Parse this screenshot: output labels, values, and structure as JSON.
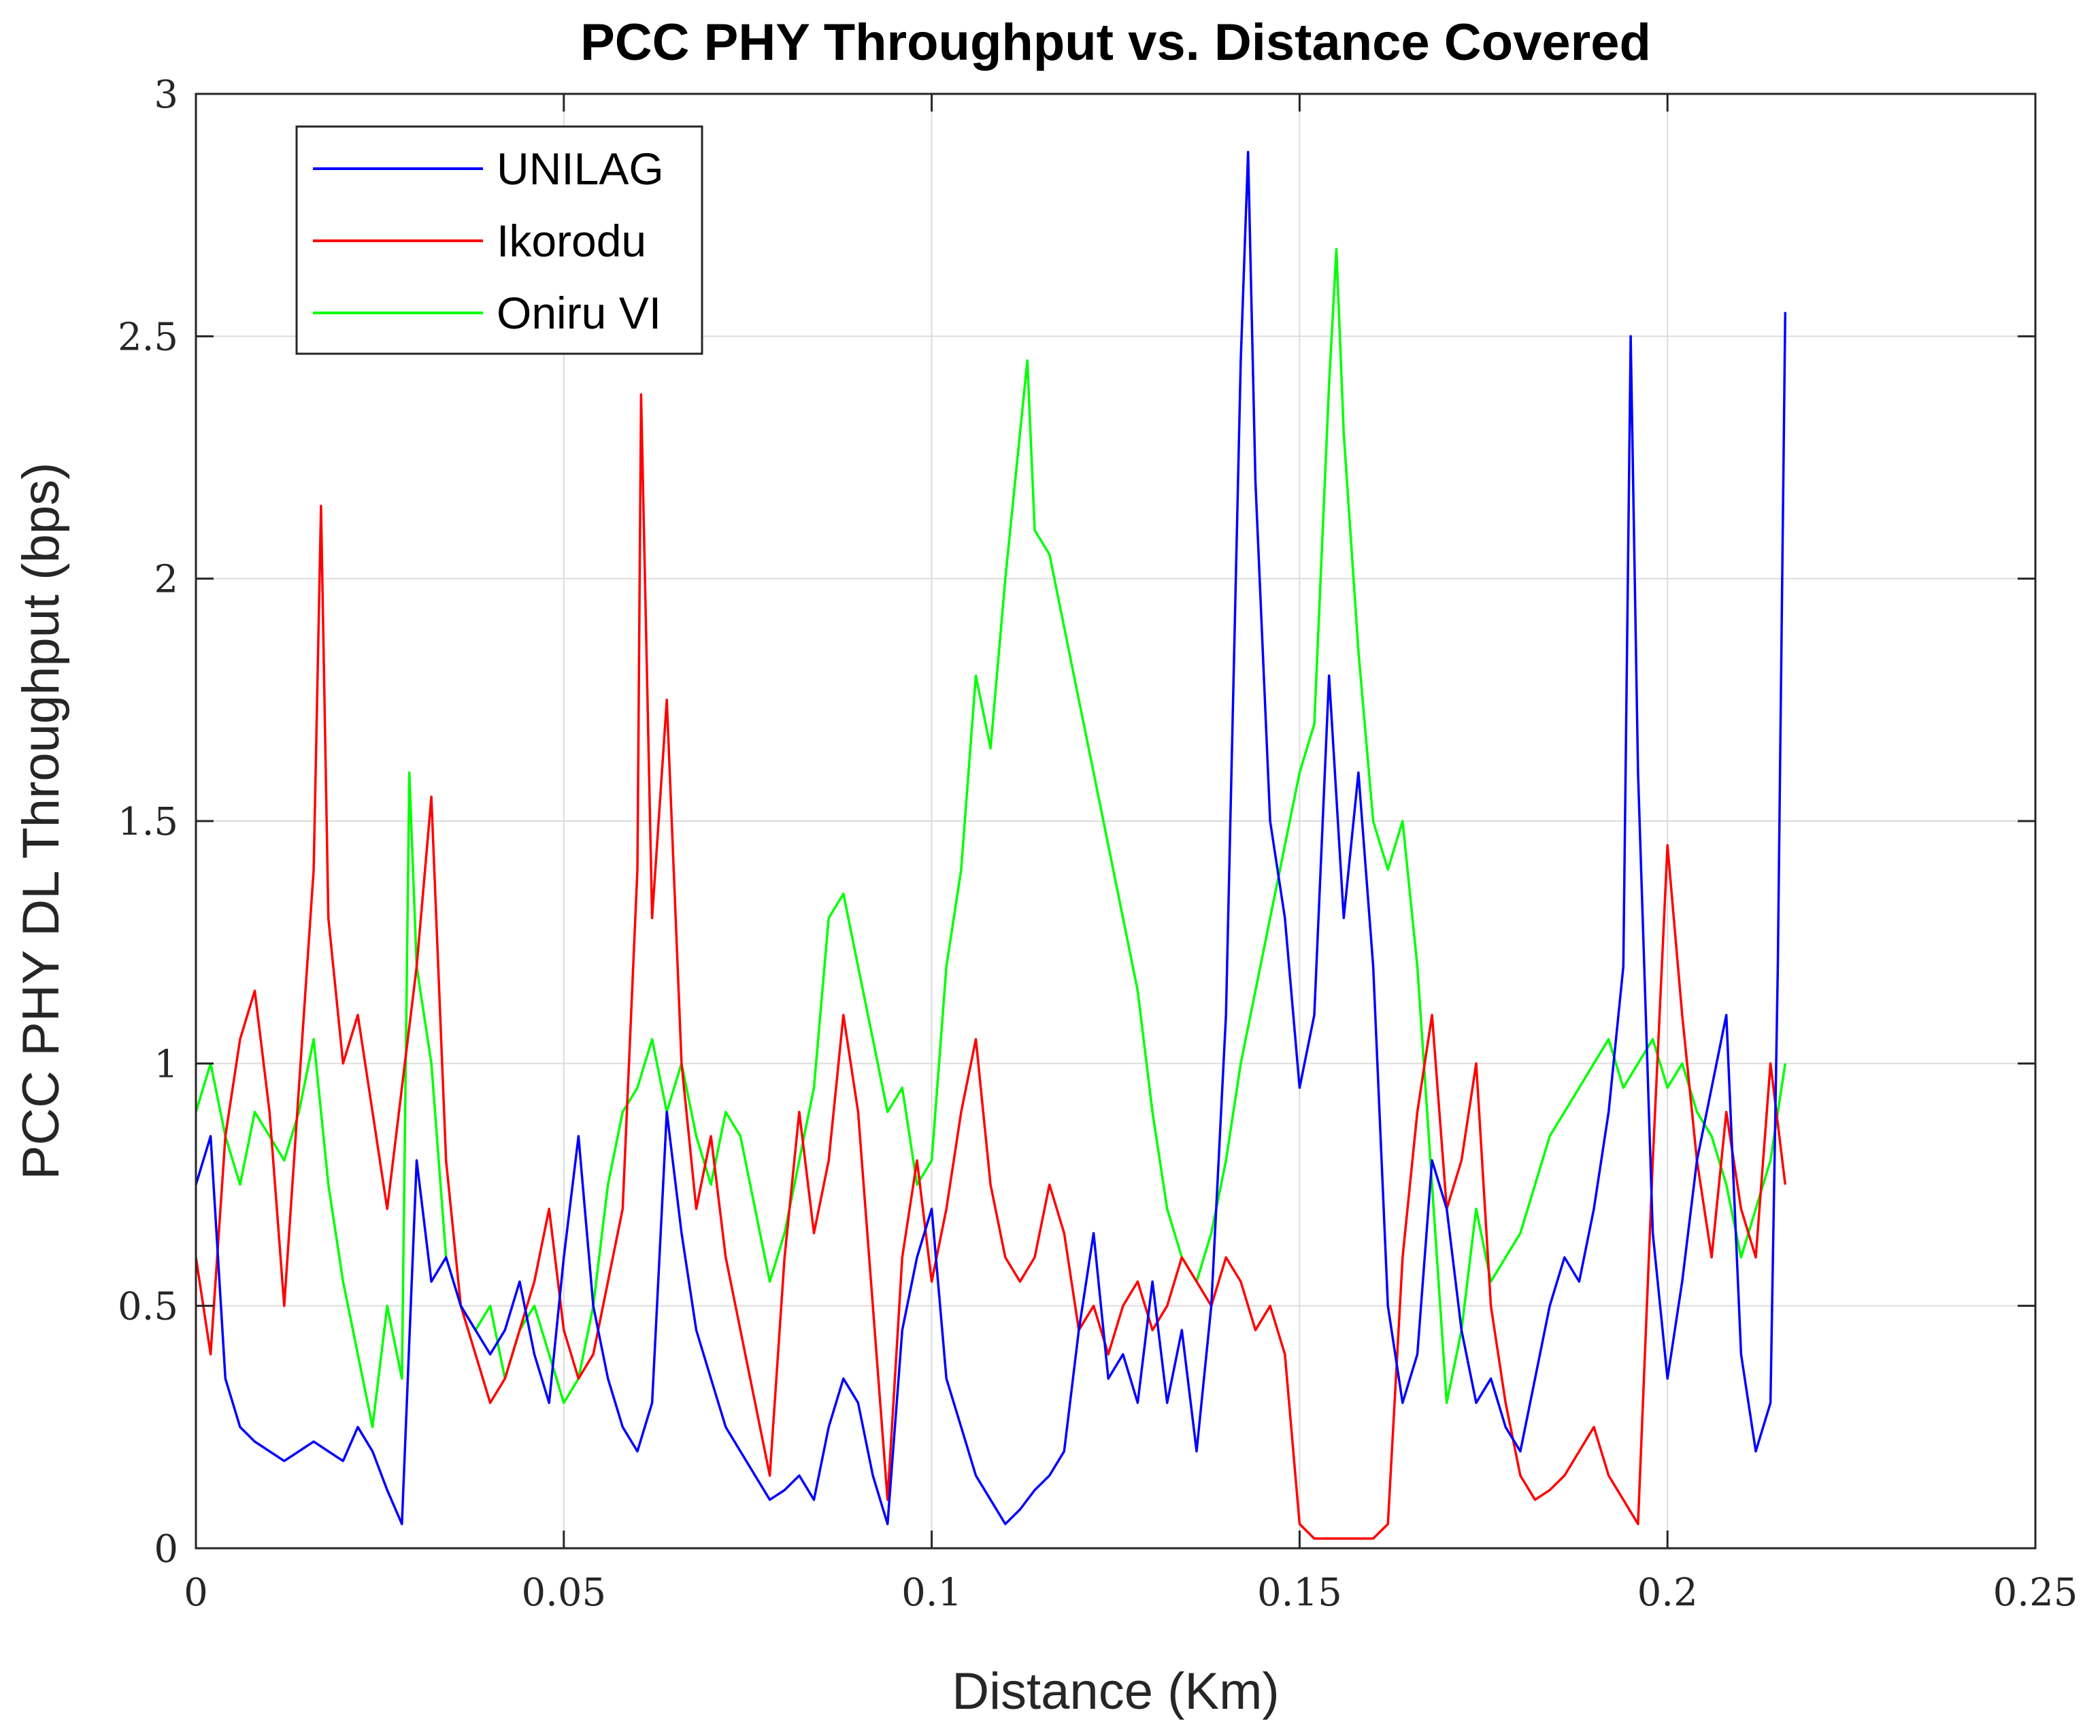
{
  "chart_data": {
    "type": "line",
    "title": "PCC PHY Throughput vs. Distance Covered",
    "xlabel": "Distance (Km)",
    "ylabel": "PCC PHY DL Throughput (bps)",
    "xlim": [
      0,
      0.25
    ],
    "ylim": [
      0,
      3
    ],
    "xticks": [
      0,
      0.05,
      0.1,
      0.15,
      0.2,
      0.25
    ],
    "xtick_labels": [
      "0",
      "0.05",
      "0.1",
      "0.15",
      "0.2",
      "0.25"
    ],
    "yticks": [
      0,
      0.5,
      1,
      1.5,
      2,
      2.5,
      3
    ],
    "ytick_labels": [
      "0",
      "0.5",
      "1",
      "1.5",
      "2",
      "2.5",
      "3"
    ],
    "grid": true,
    "legend_position": "top-left",
    "series": [
      {
        "name": "UNILAG",
        "color": "#0000ff",
        "x": [
          0,
          0.002,
          0.004,
          0.006,
          0.008,
          0.01,
          0.012,
          0.014,
          0.016,
          0.018,
          0.02,
          0.022,
          0.024,
          0.026,
          0.028,
          0.03,
          0.032,
          0.034,
          0.036,
          0.038,
          0.04,
          0.042,
          0.044,
          0.046,
          0.048,
          0.05,
          0.052,
          0.054,
          0.056,
          0.058,
          0.06,
          0.062,
          0.064,
          0.066,
          0.068,
          0.07,
          0.072,
          0.074,
          0.076,
          0.078,
          0.08,
          0.082,
          0.084,
          0.086,
          0.088,
          0.09,
          0.092,
          0.094,
          0.096,
          0.098,
          0.1,
          0.102,
          0.104,
          0.106,
          0.108,
          0.11,
          0.112,
          0.114,
          0.116,
          0.118,
          0.12,
          0.122,
          0.124,
          0.126,
          0.128,
          0.13,
          0.132,
          0.134,
          0.136,
          0.138,
          0.14,
          0.142,
          0.143,
          0.144,
          0.146,
          0.148,
          0.15,
          0.152,
          0.154,
          0.156,
          0.158,
          0.16,
          0.162,
          0.164,
          0.166,
          0.168,
          0.17,
          0.172,
          0.174,
          0.176,
          0.178,
          0.18,
          0.182,
          0.184,
          0.186,
          0.188,
          0.19,
          0.192,
          0.194,
          0.195,
          0.196,
          0.198,
          0.2,
          0.202,
          0.204,
          0.206,
          0.208,
          0.21,
          0.212,
          0.214,
          0.215,
          0.216
        ],
        "y": [
          0.75,
          0.85,
          0.35,
          0.25,
          0.22,
          0.2,
          0.18,
          0.2,
          0.22,
          0.2,
          0.18,
          0.25,
          0.2,
          0.12,
          0.05,
          0.8,
          0.55,
          0.6,
          0.5,
          0.45,
          0.4,
          0.45,
          0.55,
          0.4,
          0.3,
          0.6,
          0.85,
          0.5,
          0.35,
          0.25,
          0.2,
          0.3,
          0.9,
          0.65,
          0.45,
          0.35,
          0.25,
          0.2,
          0.15,
          0.1,
          0.12,
          0.15,
          0.1,
          0.25,
          0.35,
          0.3,
          0.15,
          0.05,
          0.45,
          0.6,
          0.7,
          0.35,
          0.25,
          0.15,
          0.1,
          0.05,
          0.08,
          0.12,
          0.15,
          0.2,
          0.45,
          0.65,
          0.35,
          0.4,
          0.3,
          0.55,
          0.3,
          0.45,
          0.2,
          0.5,
          1.1,
          2.45,
          2.88,
          2.2,
          1.5,
          1.3,
          0.95,
          1.1,
          1.8,
          1.3,
          1.6,
          1.2,
          0.5,
          0.3,
          0.4,
          0.8,
          0.7,
          0.45,
          0.3,
          0.35,
          0.25,
          0.2,
          0.35,
          0.5,
          0.6,
          0.55,
          0.7,
          0.9,
          1.2,
          2.5,
          1.6,
          0.65,
          0.35,
          0.55,
          0.8,
          0.95,
          1.1,
          0.4,
          0.2,
          0.3,
          1.2,
          2.55
        ]
      },
      {
        "name": "Ikorodu",
        "color": "#ff0000",
        "x": [
          0,
          0.002,
          0.004,
          0.006,
          0.008,
          0.01,
          0.012,
          0.014,
          0.016,
          0.017,
          0.018,
          0.02,
          0.022,
          0.024,
          0.026,
          0.028,
          0.03,
          0.032,
          0.034,
          0.036,
          0.038,
          0.04,
          0.042,
          0.044,
          0.046,
          0.048,
          0.05,
          0.052,
          0.054,
          0.056,
          0.058,
          0.06,
          0.0605,
          0.062,
          0.064,
          0.066,
          0.068,
          0.07,
          0.072,
          0.074,
          0.076,
          0.078,
          0.08,
          0.082,
          0.084,
          0.086,
          0.088,
          0.09,
          0.092,
          0.094,
          0.096,
          0.098,
          0.1,
          0.102,
          0.104,
          0.106,
          0.108,
          0.11,
          0.112,
          0.114,
          0.116,
          0.118,
          0.12,
          0.122,
          0.124,
          0.126,
          0.128,
          0.13,
          0.132,
          0.134,
          0.136,
          0.138,
          0.14,
          0.142,
          0.144,
          0.146,
          0.148,
          0.15,
          0.152,
          0.154,
          0.156,
          0.158,
          0.16,
          0.162,
          0.164,
          0.166,
          0.168,
          0.17,
          0.172,
          0.174,
          0.176,
          0.178,
          0.18,
          0.182,
          0.184,
          0.186,
          0.188,
          0.19,
          0.192,
          0.194,
          0.196,
          0.198,
          0.2,
          0.202,
          0.204,
          0.206,
          0.208,
          0.21,
          0.212,
          0.214,
          0.216
        ],
        "y": [
          0.6,
          0.4,
          0.85,
          1.05,
          1.15,
          0.9,
          0.5,
          0.95,
          1.4,
          2.15,
          1.3,
          1.0,
          1.1,
          0.9,
          0.7,
          0.95,
          1.2,
          1.55,
          0.8,
          0.5,
          0.4,
          0.3,
          0.35,
          0.45,
          0.55,
          0.7,
          0.45,
          0.35,
          0.4,
          0.55,
          0.7,
          1.4,
          2.38,
          1.3,
          1.75,
          1.0,
          0.7,
          0.85,
          0.6,
          0.45,
          0.3,
          0.15,
          0.6,
          0.9,
          0.65,
          0.8,
          1.1,
          0.9,
          0.5,
          0.1,
          0.6,
          0.8,
          0.55,
          0.7,
          0.9,
          1.05,
          0.75,
          0.6,
          0.55,
          0.6,
          0.75,
          0.65,
          0.45,
          0.5,
          0.4,
          0.5,
          0.55,
          0.45,
          0.5,
          0.6,
          0.55,
          0.5,
          0.6,
          0.55,
          0.45,
          0.5,
          0.4,
          0.05,
          0.02,
          0.02,
          0.02,
          0.02,
          0.02,
          0.05,
          0.6,
          0.9,
          1.1,
          0.7,
          0.8,
          1.0,
          0.5,
          0.3,
          0.15,
          0.1,
          0.12,
          0.15,
          0.2,
          0.25,
          0.15,
          0.1,
          0.05,
          0.8,
          1.45,
          1.1,
          0.8,
          0.6,
          0.9,
          0.7,
          0.6,
          1.0,
          0.75
        ]
      },
      {
        "name": "Oniru VI",
        "color": "#00ff00",
        "x": [
          0,
          0.002,
          0.004,
          0.006,
          0.008,
          0.01,
          0.012,
          0.014,
          0.016,
          0.018,
          0.02,
          0.022,
          0.024,
          0.026,
          0.028,
          0.029,
          0.03,
          0.032,
          0.034,
          0.036,
          0.038,
          0.04,
          0.042,
          0.044,
          0.046,
          0.048,
          0.05,
          0.052,
          0.054,
          0.056,
          0.058,
          0.06,
          0.062,
          0.064,
          0.066,
          0.068,
          0.07,
          0.072,
          0.074,
          0.076,
          0.078,
          0.08,
          0.082,
          0.084,
          0.086,
          0.088,
          0.09,
          0.092,
          0.094,
          0.096,
          0.098,
          0.1,
          0.102,
          0.104,
          0.106,
          0.108,
          0.11,
          0.112,
          0.113,
          0.114,
          0.116,
          0.118,
          0.12,
          0.122,
          0.124,
          0.126,
          0.128,
          0.13,
          0.132,
          0.134,
          0.136,
          0.138,
          0.14,
          0.142,
          0.144,
          0.146,
          0.148,
          0.15,
          0.152,
          0.154,
          0.155,
          0.156,
          0.158,
          0.16,
          0.162,
          0.164,
          0.166,
          0.168,
          0.17,
          0.172,
          0.174,
          0.176,
          0.178,
          0.18,
          0.182,
          0.184,
          0.186,
          0.188,
          0.19,
          0.192,
          0.194,
          0.196,
          0.198,
          0.2,
          0.202,
          0.204,
          0.206,
          0.208,
          0.21,
          0.212,
          0.214,
          0.216
        ],
        "y": [
          0.9,
          1.0,
          0.85,
          0.75,
          0.9,
          0.85,
          0.8,
          0.9,
          1.05,
          0.75,
          0.55,
          0.4,
          0.25,
          0.5,
          0.35,
          1.6,
          1.2,
          1.0,
          0.6,
          0.5,
          0.45,
          0.5,
          0.35,
          0.45,
          0.5,
          0.4,
          0.3,
          0.35,
          0.5,
          0.75,
          0.9,
          0.95,
          1.05,
          0.9,
          1.0,
          0.85,
          0.75,
          0.9,
          0.85,
          0.7,
          0.55,
          0.65,
          0.8,
          0.95,
          1.3,
          1.35,
          1.2,
          1.05,
          0.9,
          0.95,
          0.75,
          0.8,
          1.2,
          1.4,
          1.8,
          1.65,
          2.0,
          2.3,
          2.45,
          2.1,
          2.05,
          1.9,
          1.75,
          1.6,
          1.45,
          1.3,
          1.15,
          0.9,
          0.7,
          0.6,
          0.55,
          0.65,
          0.8,
          1.0,
          1.15,
          1.3,
          1.45,
          1.6,
          1.7,
          2.4,
          2.68,
          2.3,
          1.85,
          1.5,
          1.4,
          1.5,
          1.2,
          0.75,
          0.3,
          0.45,
          0.7,
          0.55,
          0.6,
          0.65,
          0.75,
          0.85,
          0.9,
          0.95,
          1.0,
          1.05,
          0.95,
          1.0,
          1.05,
          0.95,
          1.0,
          0.9,
          0.85,
          0.75,
          0.6,
          0.7,
          0.8,
          1.0
        ]
      }
    ]
  }
}
